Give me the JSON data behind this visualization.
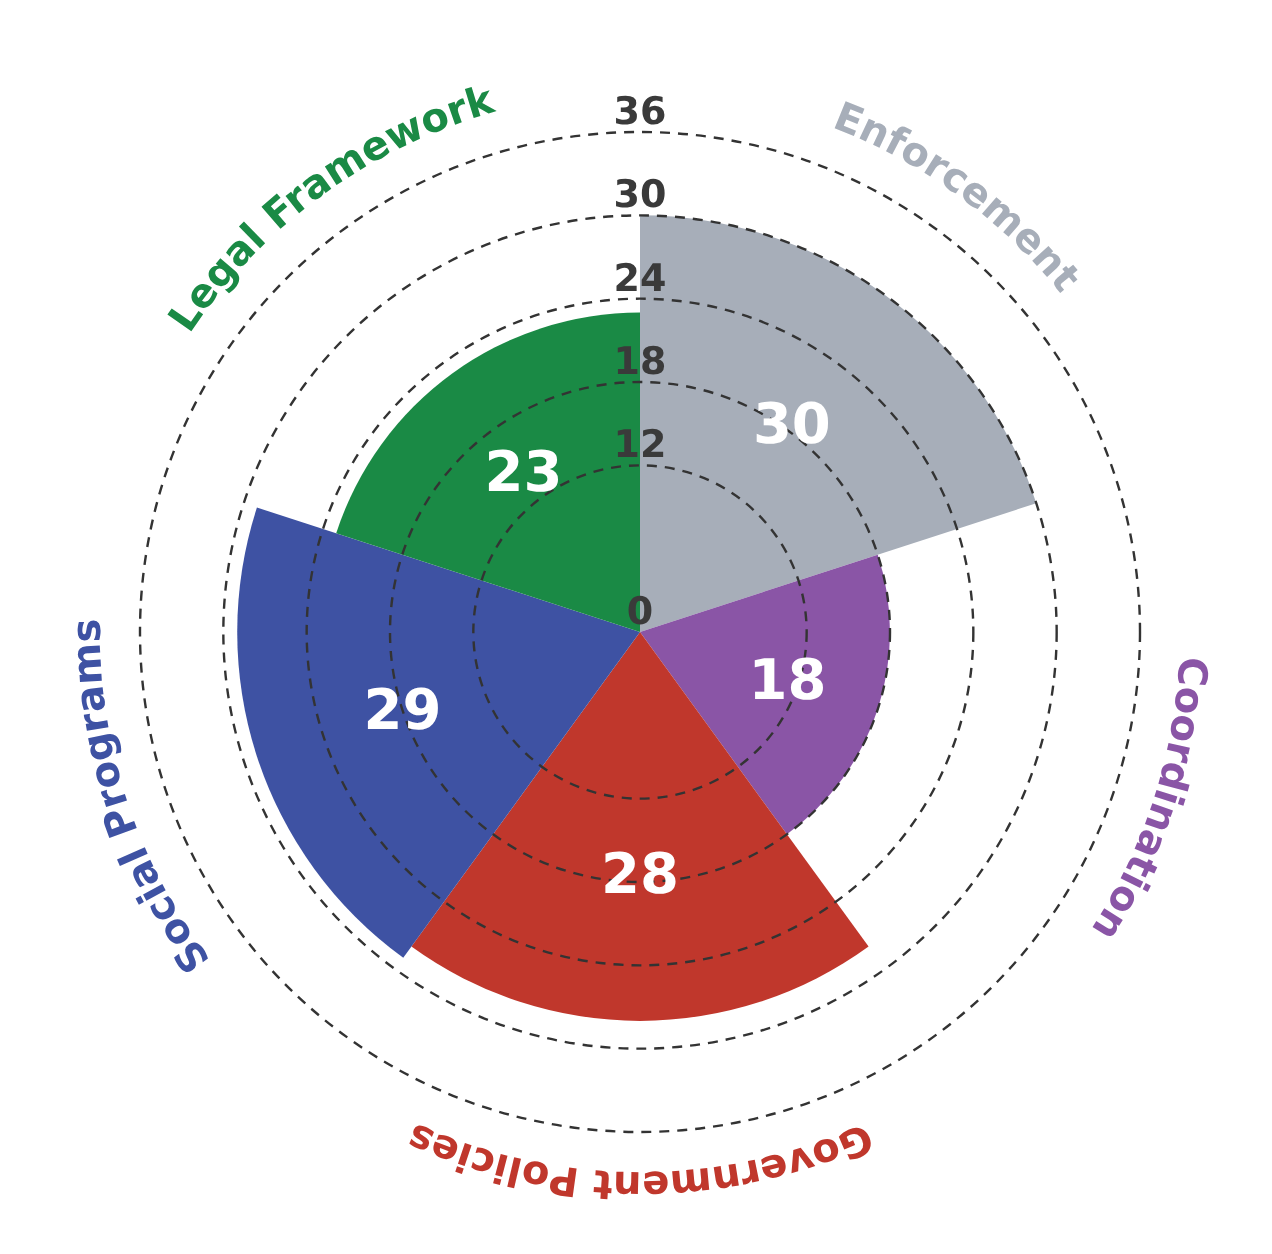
{
  "chart_data": {
    "type": "other",
    "categories": [
      "Enforcement",
      "Coordination",
      "Government Policies",
      "Social Programs",
      "Legal Framework"
    ],
    "values": [
      30,
      18,
      28,
      29,
      23
    ],
    "colors": [
      "#a7aeb9",
      "#8a55a6",
      "#c0372c",
      "#3e52a3",
      "#1a8a45"
    ],
    "annotations": [
      "0",
      "12",
      "18",
      "24",
      "30",
      "36"
    ],
    "data_labels": true
  }
}
